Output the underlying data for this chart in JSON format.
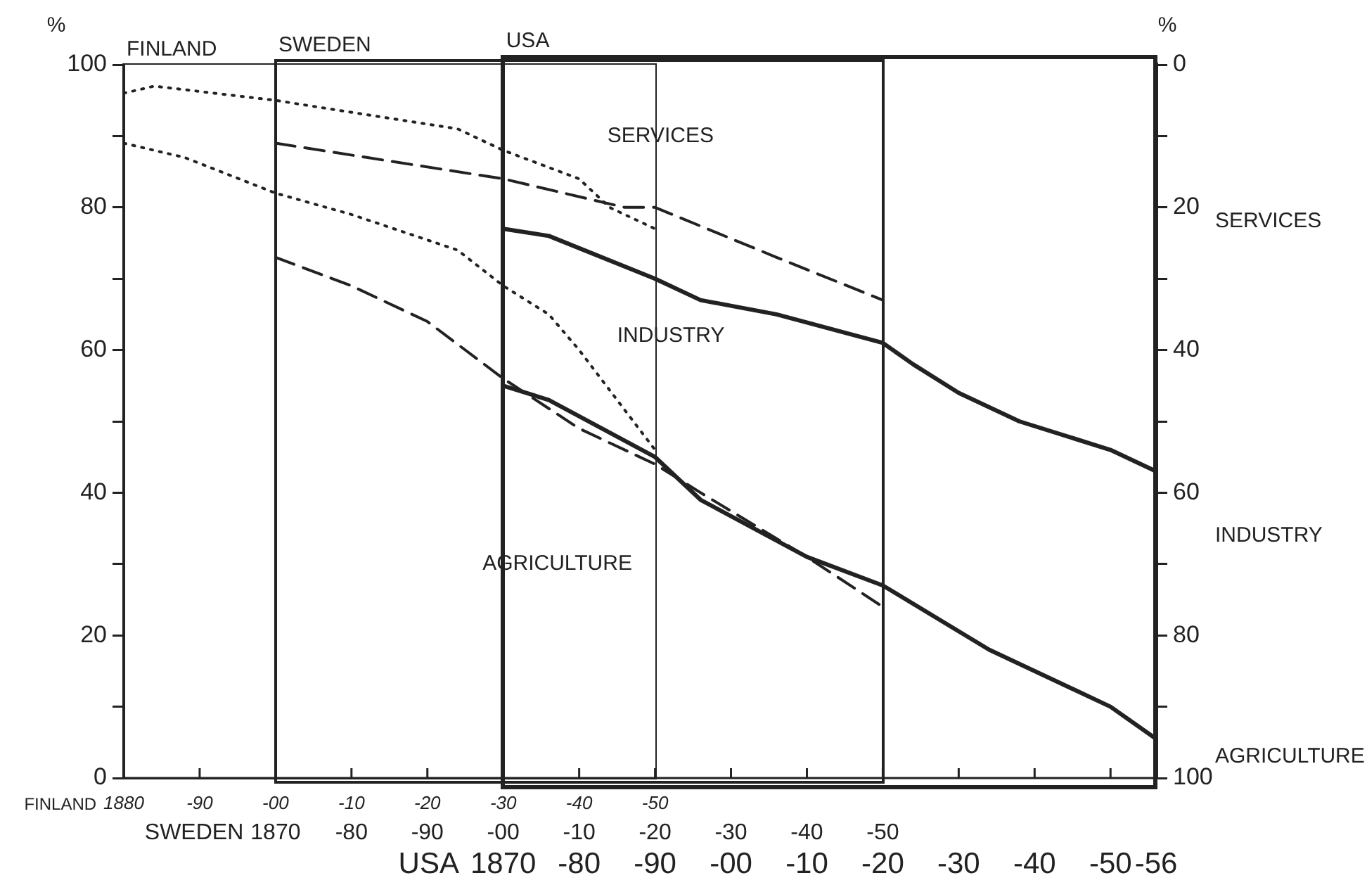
{
  "chart_data": {
    "type": "line",
    "ylabel": "%",
    "y2label": "%",
    "xlabel": "USA",
    "categories": [
      null,
      null,
      null,
      null,
      null,
      null,
      null,
      null,
      null,
      null,
      null,
      null,
      null,
      null,
      null,
      null,
      null,
      null,
      null,
      null,
      null,
      null,
      null,
      null,
      null,
      "1870",
      null,
      null,
      null,
      null,
      "-80",
      null,
      null,
      null,
      null,
      "-90",
      null,
      null,
      null,
      null,
      "-00",
      null,
      null,
      null,
      null,
      "-10",
      null,
      null,
      null,
      null,
      "-20",
      null,
      null,
      null,
      null,
      "-30",
      null,
      null,
      null,
      null,
      "-40",
      null,
      null,
      null,
      null,
      "-50",
      null,
      null,
      "-56"
    ],
    "ylim": [
      0,
      100
    ],
    "yticks": [
      0,
      {
        "value": 10,
        "label": null
      },
      20,
      {
        "value": 30,
        "label": null
      },
      40,
      {
        "value": 50,
        "label": null
      },
      60,
      {
        "value": 70,
        "label": null
      },
      80,
      {
        "value": 90,
        "label": null
      },
      100
    ],
    "y2lim": [
      100,
      0
    ],
    "y2ticks": [
      0,
      {
        "value": 10,
        "label": null
      },
      20,
      {
        "value": 30,
        "label": null
      },
      40,
      {
        "value": 50,
        "label": null
      },
      60,
      {
        "value": 70,
        "label": null
      },
      80,
      {
        "value": 90,
        "label": null
      },
      100
    ],
    "grid": false,
    "legend": false,
    "marker": "none",
    "series": [
      {
        "color": "#222222",
        "line_style": "dotted",
        "values": [
          96,
          null,
          97,
          null,
          null,
          null,
          null,
          null,
          null,
          null,
          95,
          null,
          null,
          null,
          null,
          null,
          null,
          null,
          null,
          null,
          null,
          null,
          91,
          null,
          null,
          88,
          null,
          null,
          null,
          null,
          84,
          null,
          80,
          null,
          null,
          77,
          null,
          null,
          null,
          null,
          null,
          null,
          null,
          null,
          null,
          null,
          null,
          null,
          null,
          null,
          null,
          null,
          null,
          null,
          null,
          null,
          null,
          null,
          null,
          null,
          null,
          null,
          null,
          null,
          null,
          null,
          null,
          null,
          null
        ]
      },
      {
        "color": "#222222",
        "line_style": "dotted",
        "values": [
          89,
          null,
          null,
          null,
          87,
          null,
          null,
          null,
          null,
          null,
          82,
          null,
          null,
          null,
          null,
          79,
          null,
          null,
          null,
          null,
          null,
          null,
          74,
          null,
          null,
          69,
          null,
          null,
          65,
          null,
          60,
          null,
          null,
          null,
          null,
          46,
          null,
          null,
          null,
          null,
          null,
          null,
          null,
          null,
          null,
          null,
          null,
          null,
          null,
          null,
          null,
          null,
          null,
          null,
          null,
          null,
          null,
          null,
          null,
          null,
          null,
          null,
          null,
          null,
          null,
          null,
          null,
          null,
          null
        ]
      },
      {
        "color": "#222222",
        "line_style": "dashed",
        "values": [
          null,
          null,
          null,
          null,
          null,
          null,
          null,
          null,
          null,
          null,
          89,
          null,
          null,
          null,
          null,
          null,
          87,
          null,
          null,
          null,
          null,
          null,
          null,
          null,
          null,
          84,
          null,
          null,
          null,
          null,
          null,
          null,
          null,
          80,
          null,
          80,
          null,
          null,
          null,
          null,
          null,
          null,
          null,
          73,
          null,
          null,
          null,
          null,
          null,
          null,
          67,
          null,
          null,
          null,
          null,
          null,
          null,
          null,
          null,
          null,
          null,
          null,
          null,
          null,
          null,
          null,
          null,
          null,
          null
        ]
      },
      {
        "color": "#222222",
        "line_style": "dashed",
        "values": [
          null,
          null,
          null,
          null,
          null,
          null,
          null,
          null,
          null,
          null,
          73,
          null,
          null,
          null,
          null,
          69,
          null,
          null,
          null,
          null,
          64,
          null,
          null,
          null,
          null,
          56,
          null,
          null,
          null,
          null,
          49,
          null,
          null,
          null,
          null,
          44,
          null,
          null,
          40,
          null,
          null,
          null,
          null,
          null,
          null,
          31,
          null,
          null,
          null,
          null,
          24,
          null,
          null,
          null,
          null,
          null,
          null,
          null,
          null,
          null,
          null,
          null,
          null,
          null,
          null,
          null,
          null,
          null,
          null
        ]
      },
      {
        "color": "#222222",
        "line_style": "solid",
        "values": [
          null,
          null,
          null,
          null,
          null,
          null,
          null,
          null,
          null,
          null,
          null,
          null,
          null,
          null,
          null,
          null,
          null,
          null,
          null,
          null,
          null,
          null,
          null,
          null,
          null,
          77,
          null,
          null,
          76,
          null,
          null,
          null,
          null,
          null,
          null,
          70,
          null,
          null,
          67,
          null,
          null,
          null,
          null,
          65,
          null,
          null,
          null,
          null,
          null,
          null,
          61,
          null,
          58,
          null,
          null,
          54,
          null,
          null,
          null,
          50,
          null,
          null,
          null,
          null,
          null,
          46,
          null,
          null,
          43
        ]
      },
      {
        "color": "#222222",
        "line_style": "solid",
        "values": [
          null,
          null,
          null,
          null,
          null,
          null,
          null,
          null,
          null,
          null,
          null,
          null,
          null,
          null,
          null,
          null,
          null,
          null,
          null,
          null,
          null,
          null,
          null,
          null,
          null,
          55,
          null,
          null,
          53,
          null,
          null,
          null,
          null,
          null,
          null,
          45,
          null,
          null,
          39,
          null,
          null,
          null,
          null,
          null,
          null,
          31,
          null,
          null,
          null,
          null,
          27,
          null,
          null,
          null,
          null,
          null,
          null,
          18,
          null,
          null,
          null,
          null,
          null,
          null,
          null,
          10,
          null,
          null,
          5.5
        ]
      }
    ],
    "annotations": [
      "SERVICES",
      "INDUSTRY",
      "AGRICULTURE",
      "SERVICES",
      "INDUSTRY",
      "AGRICULTURE",
      "FINLAND",
      "SWEDEN",
      "USA",
      "FINLAND",
      "1880",
      "-90",
      "-00",
      "-10",
      "-20",
      "-30",
      "-40",
      "-50",
      "SWEDEN",
      "1870",
      "-80",
      "-90",
      "-00",
      "-10",
      "-20",
      "-30",
      "-40",
      "-50"
    ]
  }
}
